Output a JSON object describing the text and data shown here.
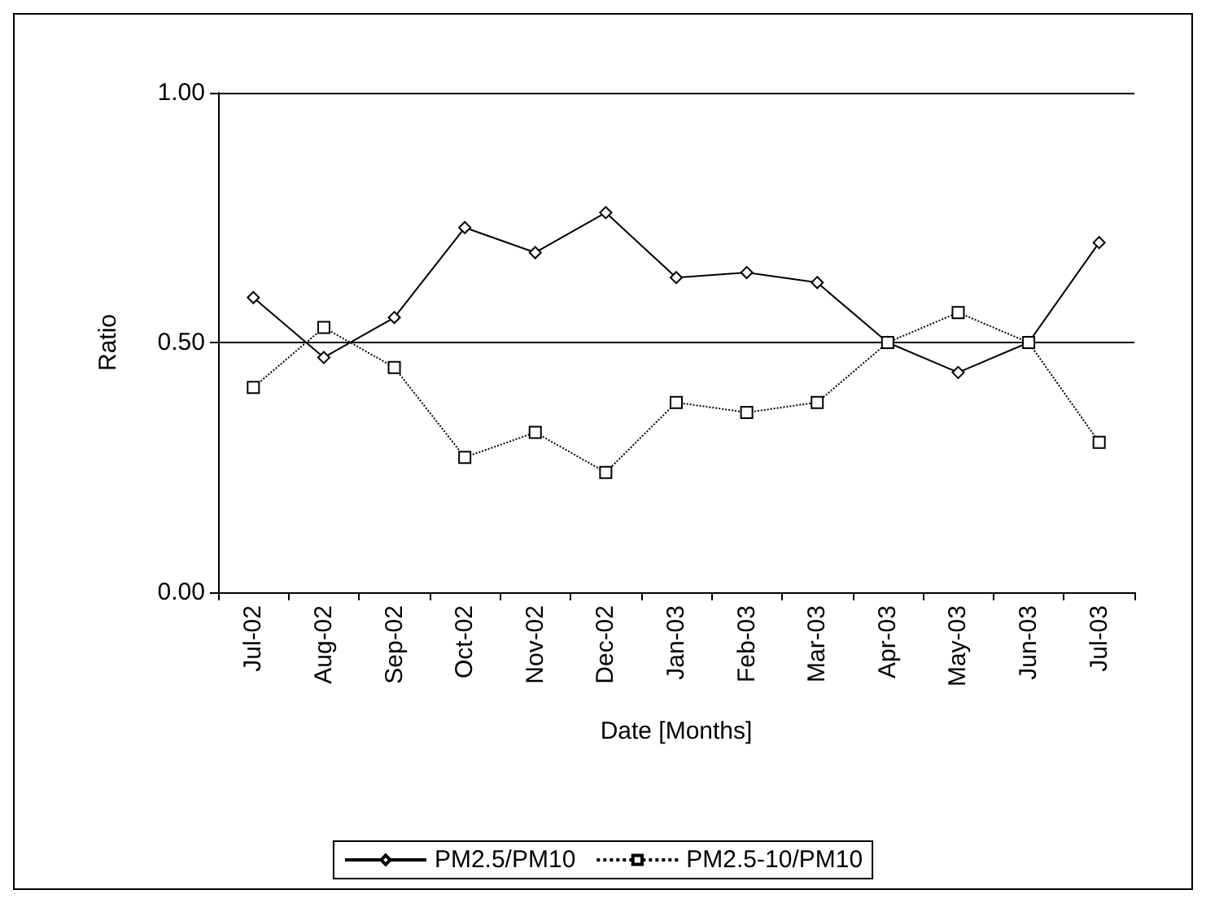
{
  "chart_data": {
    "type": "line",
    "xlabel": "Date [Months]",
    "ylabel": "Ratio",
    "categories": [
      "Jul-02",
      "Aug-02",
      "Sep-02",
      "Oct-02",
      "Nov-02",
      "Dec-02",
      "Jan-03",
      "Feb-03",
      "Mar-03",
      "Apr-03",
      "May-03",
      "Jun-03",
      "Jul-03"
    ],
    "series": [
      {
        "name": "PM2.5/PM10",
        "color": "#000000",
        "marker": "diamond",
        "line_style": "solid",
        "values": [
          0.59,
          0.47,
          0.55,
          0.73,
          0.68,
          0.76,
          0.63,
          0.64,
          0.62,
          0.5,
          0.44,
          0.5,
          0.7
        ]
      },
      {
        "name": "PM2.5-10/PM10",
        "color": "#000000",
        "marker": "square",
        "line_style": "dotted",
        "values": [
          0.41,
          0.53,
          0.45,
          0.27,
          0.32,
          0.24,
          0.38,
          0.36,
          0.38,
          0.5,
          0.56,
          0.5,
          0.3
        ]
      }
    ],
    "ylim": [
      0,
      1
    ],
    "yticks": [
      {
        "value": 0,
        "label": "0.00"
      },
      {
        "value": 0.5,
        "label": "0.50"
      },
      {
        "value": 1,
        "label": "1.00"
      }
    ],
    "grid": "y",
    "legend": "bottom"
  }
}
